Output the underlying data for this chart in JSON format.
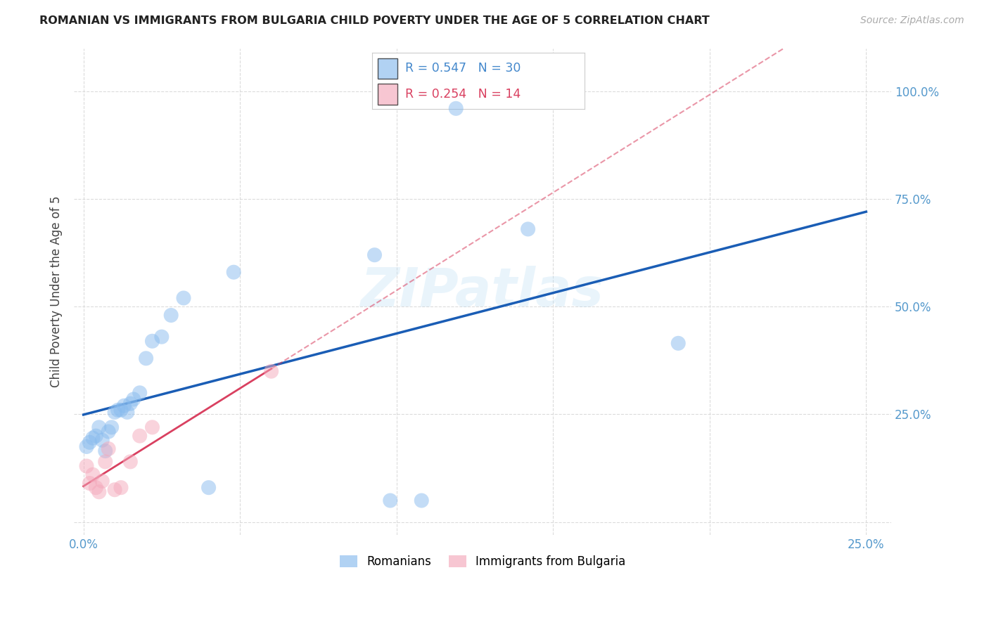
{
  "title": "ROMANIAN VS IMMIGRANTS FROM BULGARIA CHILD POVERTY UNDER THE AGE OF 5 CORRELATION CHART",
  "source": "Source: ZipAtlas.com",
  "ylabel": "Child Poverty Under the Age of 5",
  "xlim": [
    -0.003,
    0.258
  ],
  "ylim": [
    -0.03,
    1.1
  ],
  "x_ticks": [
    0.0,
    0.05,
    0.1,
    0.15,
    0.2,
    0.25
  ],
  "y_ticks": [
    0.0,
    0.25,
    0.5,
    0.75,
    1.0
  ],
  "x_tick_labels": [
    "0.0%",
    "",
    "",
    "",
    "",
    "25.0%"
  ],
  "y_tick_labels": [
    "",
    "25.0%",
    "50.0%",
    "75.0%",
    "100.0%"
  ],
  "romanian_R": 0.547,
  "romanian_N": 30,
  "bulgarian_R": 0.254,
  "bulgarian_N": 14,
  "legend_label1": "Romanians",
  "legend_label2": "Immigrants from Bulgaria",
  "watermark": "ZIPatlas",
  "blue_color": "#88bbee",
  "pink_color": "#f4a8bb",
  "line_blue": "#1a5db5",
  "line_pink": "#d94060",
  "romanian_x": [
    0.001,
    0.002,
    0.003,
    0.004,
    0.005,
    0.006,
    0.007,
    0.008,
    0.009,
    0.01,
    0.011,
    0.012,
    0.013,
    0.014,
    0.015,
    0.016,
    0.018,
    0.02,
    0.022,
    0.025,
    0.028,
    0.032,
    0.04,
    0.048,
    0.093,
    0.098,
    0.108,
    0.119,
    0.142,
    0.19
  ],
  "romanian_y": [
    0.175,
    0.185,
    0.195,
    0.2,
    0.22,
    0.19,
    0.165,
    0.21,
    0.22,
    0.255,
    0.26,
    0.26,
    0.27,
    0.255,
    0.275,
    0.285,
    0.3,
    0.38,
    0.42,
    0.43,
    0.48,
    0.52,
    0.08,
    0.58,
    0.62,
    0.05,
    0.05,
    0.96,
    0.68,
    0.415
  ],
  "bulgarian_x": [
    0.001,
    0.002,
    0.003,
    0.004,
    0.005,
    0.006,
    0.007,
    0.008,
    0.01,
    0.012,
    0.015,
    0.018,
    0.022,
    0.06
  ],
  "bulgarian_y": [
    0.13,
    0.09,
    0.11,
    0.08,
    0.07,
    0.095,
    0.14,
    0.17,
    0.075,
    0.08,
    0.14,
    0.2,
    0.22,
    0.35
  ]
}
